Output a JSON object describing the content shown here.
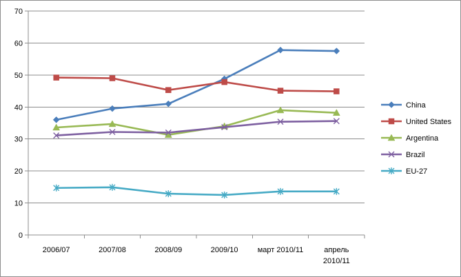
{
  "chart_data": {
    "type": "line",
    "title": "",
    "xlabel": "",
    "ylabel": "",
    "categories": [
      "2006/07",
      "2007/08",
      "2008/09",
      "2009/10",
      "март 2010/11",
      "апрель 2010/11"
    ],
    "category_lines": [
      [
        "2006/07"
      ],
      [
        "2007/08"
      ],
      [
        "2008/09"
      ],
      [
        "2009/10"
      ],
      [
        "март 2010/11"
      ],
      [
        "апрель",
        "2010/11"
      ]
    ],
    "ylim": [
      0,
      70
    ],
    "y_ticks": [
      0,
      10,
      20,
      30,
      40,
      50,
      60,
      70
    ],
    "grid": true,
    "legend_position": "right",
    "series": [
      {
        "name": "China",
        "color": "#4a7ebb",
        "marker": "diamond",
        "values": [
          36.0,
          39.5,
          41.0,
          48.8,
          57.8,
          57.5
        ]
      },
      {
        "name": "United States",
        "color": "#be4b48",
        "marker": "square",
        "values": [
          49.2,
          49.0,
          45.3,
          47.8,
          45.1,
          44.9
        ]
      },
      {
        "name": "Argentina",
        "color": "#98b954",
        "marker": "triangle",
        "values": [
          33.6,
          34.7,
          31.3,
          34.0,
          39.0,
          38.2
        ]
      },
      {
        "name": "Brazil",
        "color": "#7d5fa0",
        "marker": "x",
        "values": [
          31.1,
          32.2,
          32.0,
          33.7,
          35.4,
          35.6
        ]
      },
      {
        "name": "EU-27",
        "color": "#46aac5",
        "marker": "star",
        "values": [
          14.7,
          14.9,
          12.9,
          12.5,
          13.6,
          13.6
        ]
      }
    ]
  }
}
